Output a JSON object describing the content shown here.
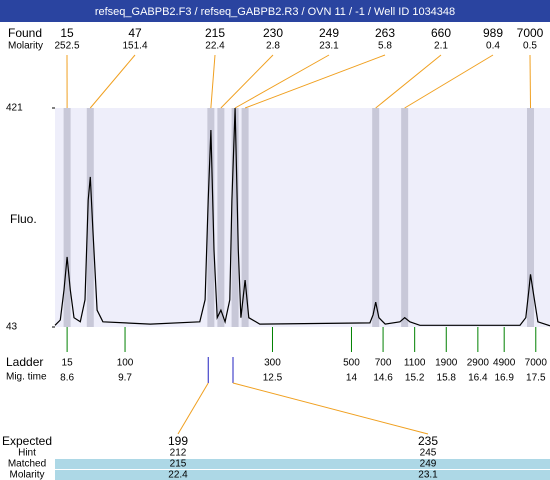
{
  "chart_data": {
    "type": "line",
    "title": "refseq_GABPB2.F3 / refseq_GABPB2.R3 / OVN 11 / -1 / Well ID 1034348",
    "ylabel": "Fluo.",
    "xlim": [
      8.37,
      17.77
    ],
    "ylim": [
      43,
      421
    ],
    "yticks": [
      421,
      43
    ],
    "band_color": "#c8c8d8",
    "plot_color": "#eeeefa",
    "trace_color": "#000000",
    "x": [
      8.37,
      8.47,
      8.54,
      8.6,
      8.66,
      8.73,
      8.85,
      8.94,
      9.0,
      9.04,
      9.09,
      9.17,
      9.28,
      10.18,
      11.12,
      11.22,
      11.28,
      11.33,
      11.39,
      11.45,
      11.52,
      11.6,
      11.69,
      11.73,
      11.79,
      11.85,
      11.9,
      11.98,
      12.05,
      12.26,
      14.35,
      14.41,
      14.46,
      14.52,
      14.64,
      14.92,
      15.01,
      15.11,
      15.3,
      17.2,
      17.31,
      17.37,
      17.4,
      17.46,
      17.54,
      17.77
    ],
    "values": [
      46,
      55,
      107,
      164,
      107,
      59,
      52,
      90,
      262,
      302,
      210,
      72,
      52,
      48,
      52,
      90,
      262,
      383,
      176,
      59,
      72,
      52,
      90,
      262,
      421,
      176,
      59,
      124,
      59,
      48,
      50,
      64,
      86,
      59,
      48,
      52,
      59,
      52,
      46,
      46,
      59,
      107,
      134,
      98,
      52,
      45
    ],
    "found": {
      "label": "Found",
      "molarity_label": "Molarity",
      "color": "#f0a020",
      "sizes": [
        15,
        47,
        215,
        230,
        249,
        263,
        660,
        989,
        7000
      ],
      "molarity": [
        252.5,
        151.4,
        22.4,
        2.8,
        23.1,
        5.8,
        2.1,
        0.4,
        0.5
      ],
      "times": [
        8.6,
        9.04,
        11.33,
        11.52,
        11.79,
        11.98,
        14.46,
        15.01,
        17.4
      ]
    },
    "ladder": {
      "label": "Ladder",
      "time_label": "Mig. time",
      "color": "#008000",
      "sizes": [
        15,
        100,
        300,
        500,
        700,
        1100,
        1900,
        2900,
        4900,
        7000
      ],
      "times": [
        8.6,
        9.7,
        12.5,
        14,
        14.6,
        15.2,
        15.8,
        16.4,
        16.9,
        17.5
      ]
    },
    "expected": {
      "label": "Expected",
      "hint_label": "Hint",
      "matched_label": "Matched",
      "molarity_label": "Molarity",
      "marker_color": "#2020c0",
      "row_color": "#add8e6",
      "values": [
        199,
        235
      ],
      "times": [
        11.28,
        11.75
      ],
      "hint": [
        212,
        245
      ],
      "matched": [
        215,
        249
      ],
      "molarity": [
        22.4,
        23.1
      ]
    }
  }
}
